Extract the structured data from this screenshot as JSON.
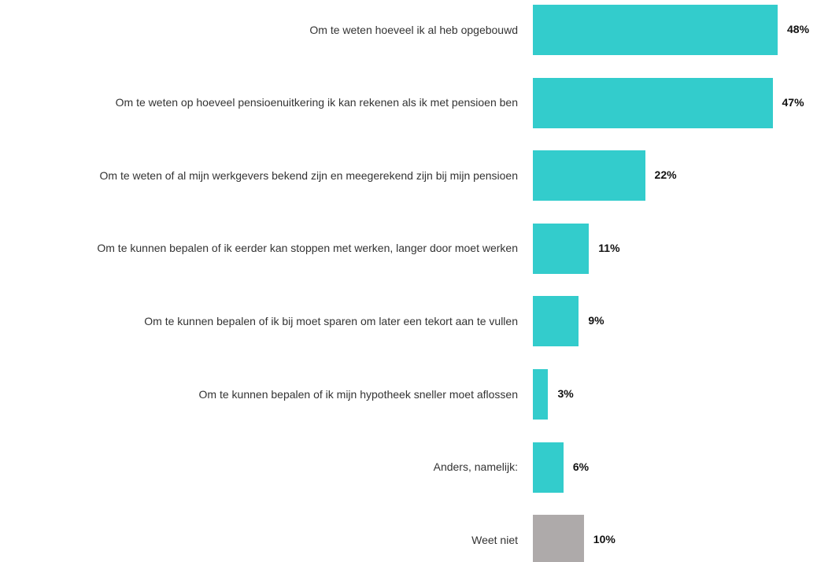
{
  "chart_data": {
    "type": "bar",
    "orientation": "horizontal",
    "categories": [
      "Om te weten hoeveel ik al heb opgebouwd",
      "Om te weten op hoeveel pensioenuitkering ik kan rekenen als ik met pensioen ben",
      "Om te weten of al mijn werkgevers bekend zijn en meegerekend zijn bij mijn pensioen",
      "Om te kunnen bepalen of ik eerder kan stoppen met werken, langer door moet werken",
      "Om te kunnen bepalen of ik bij moet sparen om later een tekort aan te vullen",
      "Om te kunnen bepalen of ik mijn hypotheek sneller moet aflossen",
      "Anders, namelijk:",
      "Weet niet"
    ],
    "values": [
      48,
      47,
      22,
      11,
      9,
      3,
      6,
      10
    ],
    "value_labels": [
      "48%",
      "47%",
      "22%",
      "11%",
      "9%",
      "3%",
      "6%",
      "10%"
    ],
    "colors": [
      "#33cccc",
      "#33cccc",
      "#33cccc",
      "#33cccc",
      "#33cccc",
      "#33cccc",
      "#33cccc",
      "#aeaaaa"
    ]
  }
}
